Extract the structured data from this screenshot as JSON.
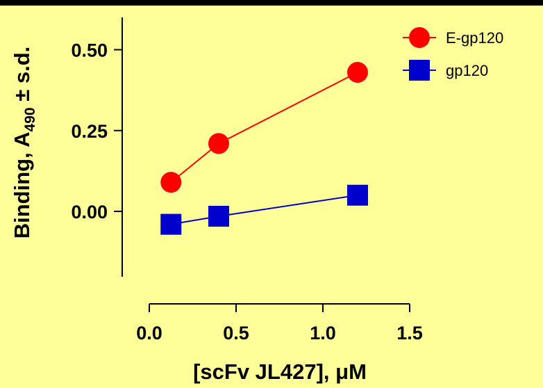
{
  "chart_data": {
    "type": "line",
    "xlabel": "[scFv JL427], μM",
    "ylabel_prefix": "Binding, A",
    "ylabel_subscript": "490",
    "ylabel_suffix": " ± s.d.",
    "xlim": [
      0.0,
      1.5
    ],
    "ylim": [
      -0.2,
      0.6
    ],
    "xticks": [
      0.0,
      0.5,
      1.0,
      1.5
    ],
    "xtick_labels": [
      "0.0",
      "0.5",
      "1.0",
      "1.5"
    ],
    "yticks": [
      0.0,
      0.25,
      0.5
    ],
    "ytick_labels": [
      "0.00",
      "0.25",
      "0.50"
    ],
    "legend_position": "top-right",
    "grid": false,
    "series": [
      {
        "name": "E-gp120",
        "marker": "circle",
        "color": "#FF0000",
        "line_color": "#FF0000",
        "x": [
          0.125,
          0.4,
          1.2
        ],
        "y": [
          0.09,
          0.21,
          0.43
        ]
      },
      {
        "name": "gp120",
        "marker": "square",
        "color": "#0000CC",
        "line_color": "#0000CC",
        "x": [
          0.125,
          0.4,
          1.2
        ],
        "y": [
          -0.04,
          -0.015,
          0.05
        ]
      }
    ]
  },
  "colors": {
    "background": "#FFFF99",
    "top_bar": "#000000",
    "axis": "#000000"
  }
}
